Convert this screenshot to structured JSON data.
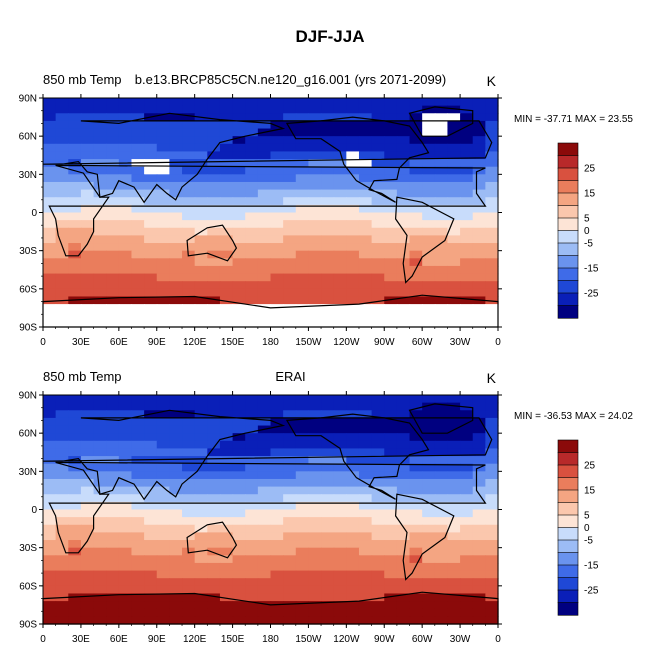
{
  "figure": {
    "title": "DJF-JJA"
  },
  "chart_data": [
    {
      "type": "heatmap",
      "left_label": "850 mb Temp",
      "center_label": "b.e13.BRCP85C5CN.ne120_g16.001 (yrs 2071-2099)",
      "units": "K",
      "stats": "MIN = -37.71 MAX =  23.55",
      "x_ticks": [
        "0",
        "30E",
        "60E",
        "90E",
        "120E",
        "150E",
        "180",
        "150W",
        "120W",
        "90W",
        "60W",
        "30W",
        "0"
      ],
      "y_ticks": [
        "90N",
        "60N",
        "30N",
        "0",
        "30S",
        "60S",
        "90S"
      ],
      "xlim": [
        0,
        360
      ],
      "ylim": [
        -90,
        90
      ],
      "missing_regions": [
        "tibetan-plateau",
        "rocky-mountains",
        "greenland",
        "antarctica"
      ],
      "colorbar": {
        "levels": [
          -30,
          -25,
          -20,
          -15,
          -10,
          -5,
          0,
          5,
          10,
          15,
          20,
          25,
          30
        ],
        "tick_labels": [
          "-25",
          "-15",
          "-5",
          "0",
          "5",
          "15",
          "25"
        ],
        "colors": [
          "#000080",
          "#0a1fb8",
          "#1f48d6",
          "#3f6be8",
          "#6a93ee",
          "#9cbcf5",
          "#c8dcfb",
          "#fde4d6",
          "#fbc7ad",
          "#f4a582",
          "#ea7d5c",
          "#d9513f",
          "#b8292a",
          "#8b0a0a"
        ]
      }
    },
    {
      "type": "heatmap",
      "left_label": "850 mb Temp",
      "center_label": "ERAI",
      "units": "K",
      "stats": "MIN = -36.53 MAX = 24.02",
      "x_ticks": [
        "0",
        "30E",
        "60E",
        "90E",
        "120E",
        "150E",
        "180",
        "150W",
        "120W",
        "90W",
        "60W",
        "30W",
        "0"
      ],
      "y_ticks": [
        "90N",
        "60N",
        "30N",
        "0",
        "30S",
        "60S",
        "90S"
      ],
      "xlim": [
        0,
        360
      ],
      "ylim": [
        -90,
        90
      ],
      "colorbar": {
        "levels": [
          -30,
          -25,
          -20,
          -15,
          -10,
          -5,
          0,
          5,
          10,
          15,
          20,
          25,
          30
        ],
        "tick_labels": [
          "-25",
          "-15",
          "-5",
          "0",
          "5",
          "15",
          "25"
        ],
        "colors": [
          "#000080",
          "#0a1fb8",
          "#1f48d6",
          "#3f6be8",
          "#6a93ee",
          "#9cbcf5",
          "#c8dcfb",
          "#fde4d6",
          "#fbc7ad",
          "#f4a582",
          "#ea7d5c",
          "#d9513f",
          "#b8292a",
          "#8b0a0a"
        ]
      }
    }
  ]
}
